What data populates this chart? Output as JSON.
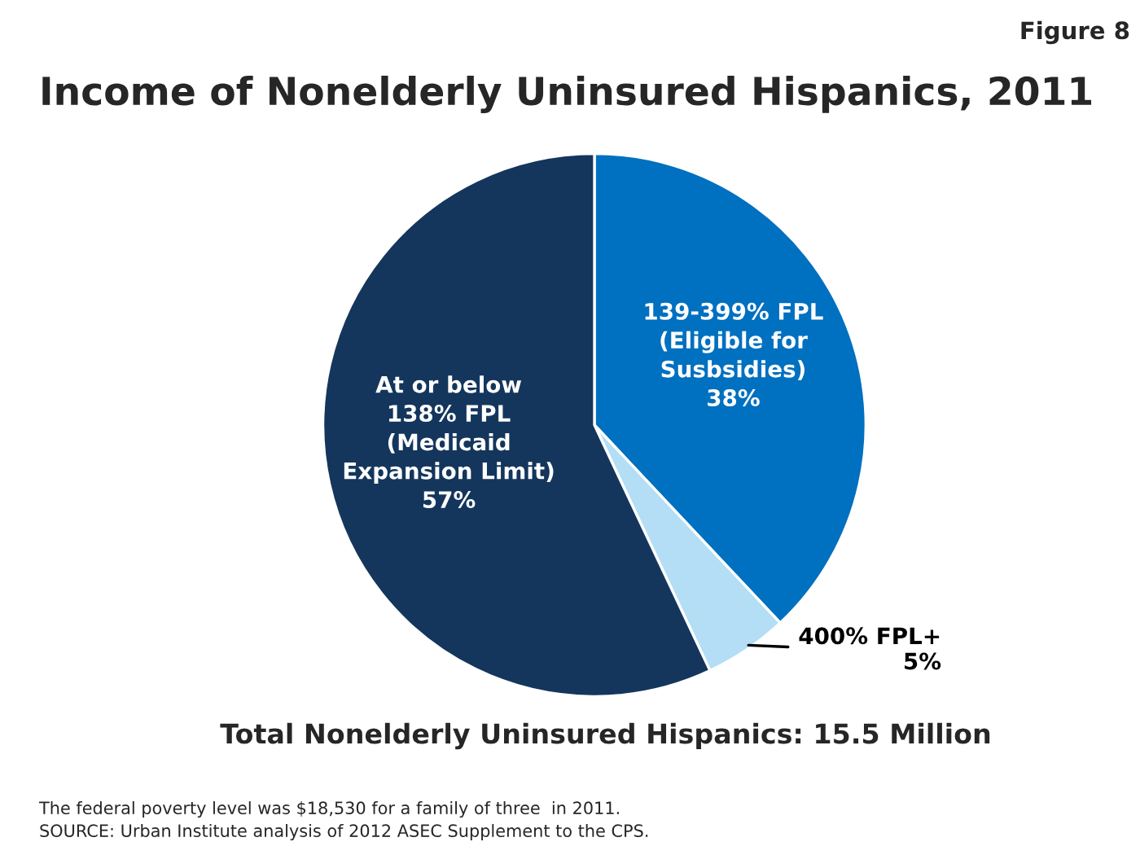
{
  "chart_data": {
    "type": "pie",
    "title": "Income of Nonelderly Uninsured Hispanics, 2011",
    "subtitle": "Total Nonelderly Uninsured Hispanics: 15.5 Million",
    "categories": [
      "139-399% FPL\n(Eligible for\nSusbsidies)",
      "400% FPL+",
      "At or below\n138% FPL\n(Medicaid\nExpansion Limit)"
    ],
    "values": [
      38,
      5,
      57
    ],
    "value_labels": [
      "38%",
      "5%",
      "57%"
    ],
    "colors": [
      "#0070c0",
      "#b3def5",
      "#14365d"
    ],
    "annotations": [
      "Figure 8",
      "The federal poverty level was $18,530 for a family of three  in 2011.",
      "SOURCE: Urban Institute analysis of 2012 ASEC Supplement to the CPS."
    ]
  }
}
